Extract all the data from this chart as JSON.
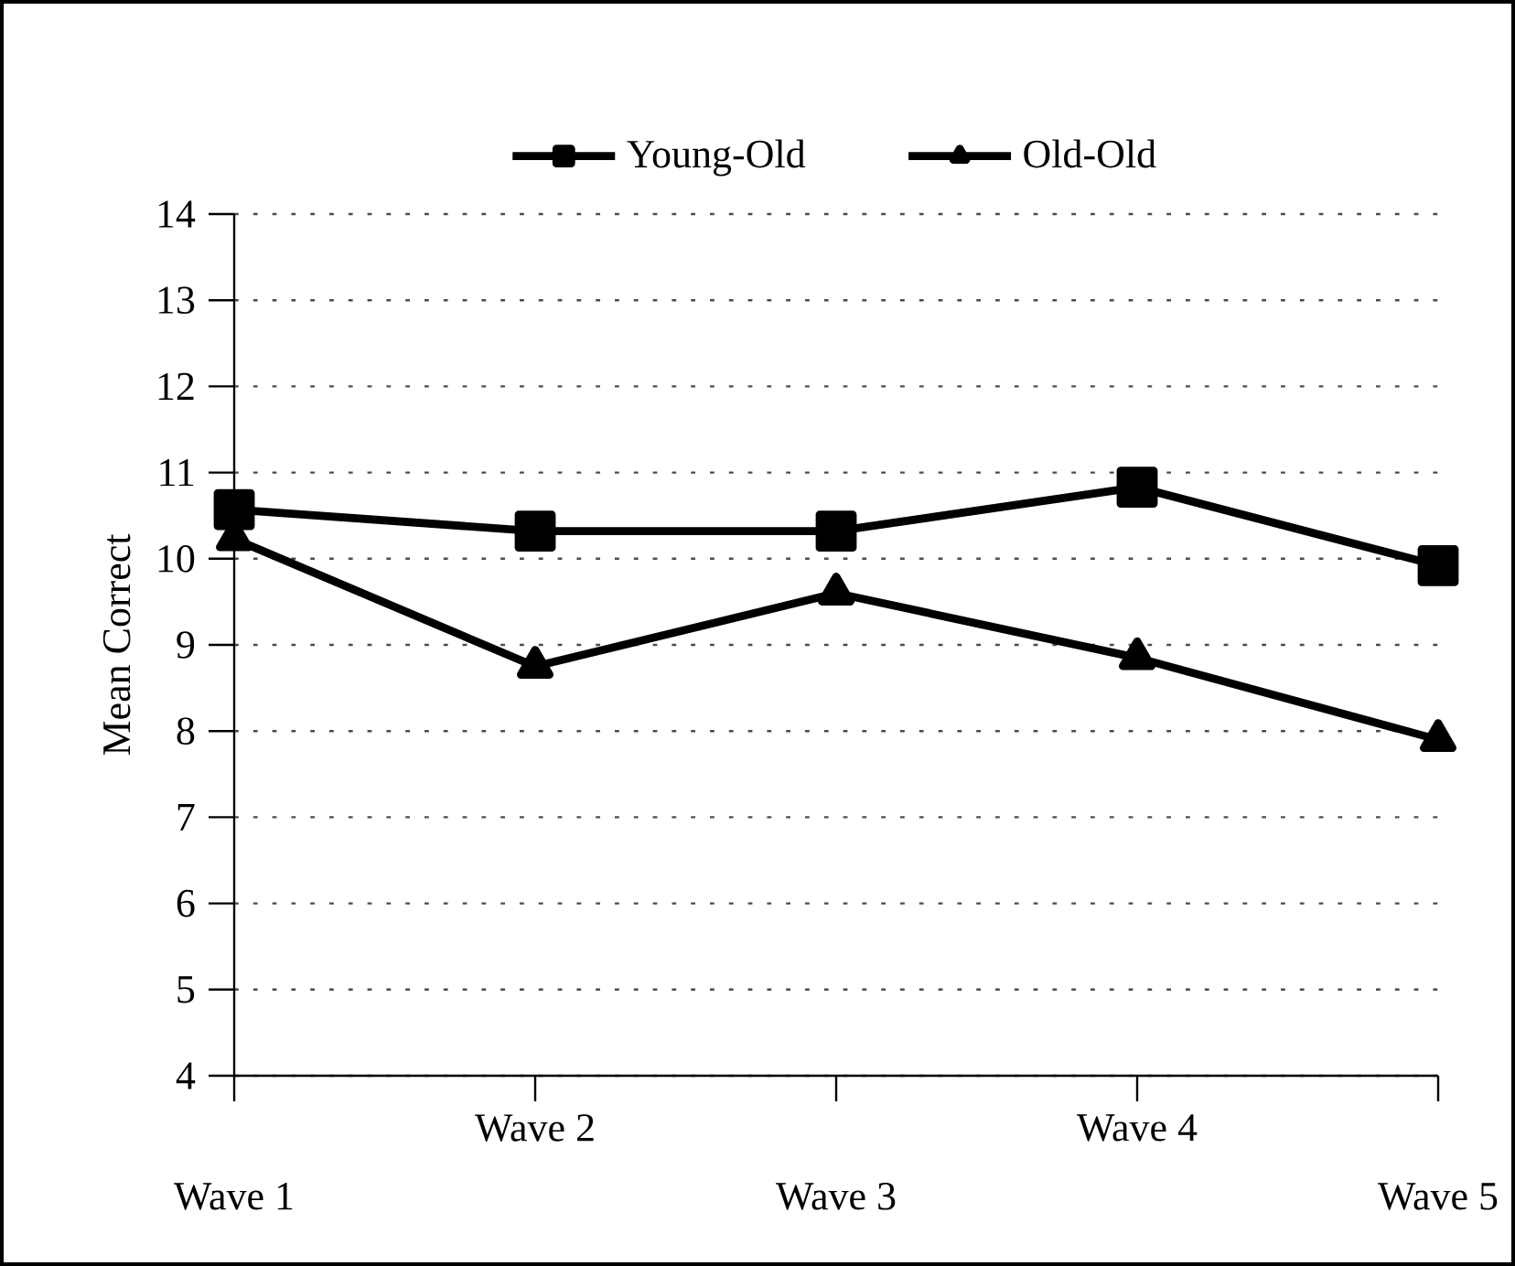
{
  "chart_data": {
    "type": "line",
    "ylabel": "Mean Correct",
    "categories": [
      "Wave 1",
      "Wave 2",
      "Wave 3",
      "Wave 4",
      "Wave 5"
    ],
    "series": [
      {
        "name": "Young-Old",
        "color": "#000000",
        "marker": "square",
        "values": [
          10.57,
          10.32,
          10.32,
          10.83,
          9.92
        ]
      },
      {
        "name": "Old-Old",
        "color": "#000000",
        "marker": "triangle",
        "values": [
          10.23,
          8.75,
          9.6,
          8.85,
          7.9
        ]
      }
    ],
    "ylim": [
      4,
      14
    ],
    "yticks": [
      4,
      5,
      6,
      7,
      8,
      9,
      10,
      11,
      12,
      13,
      14
    ],
    "grid": "y",
    "legend": "top",
    "line_style": "solid"
  }
}
